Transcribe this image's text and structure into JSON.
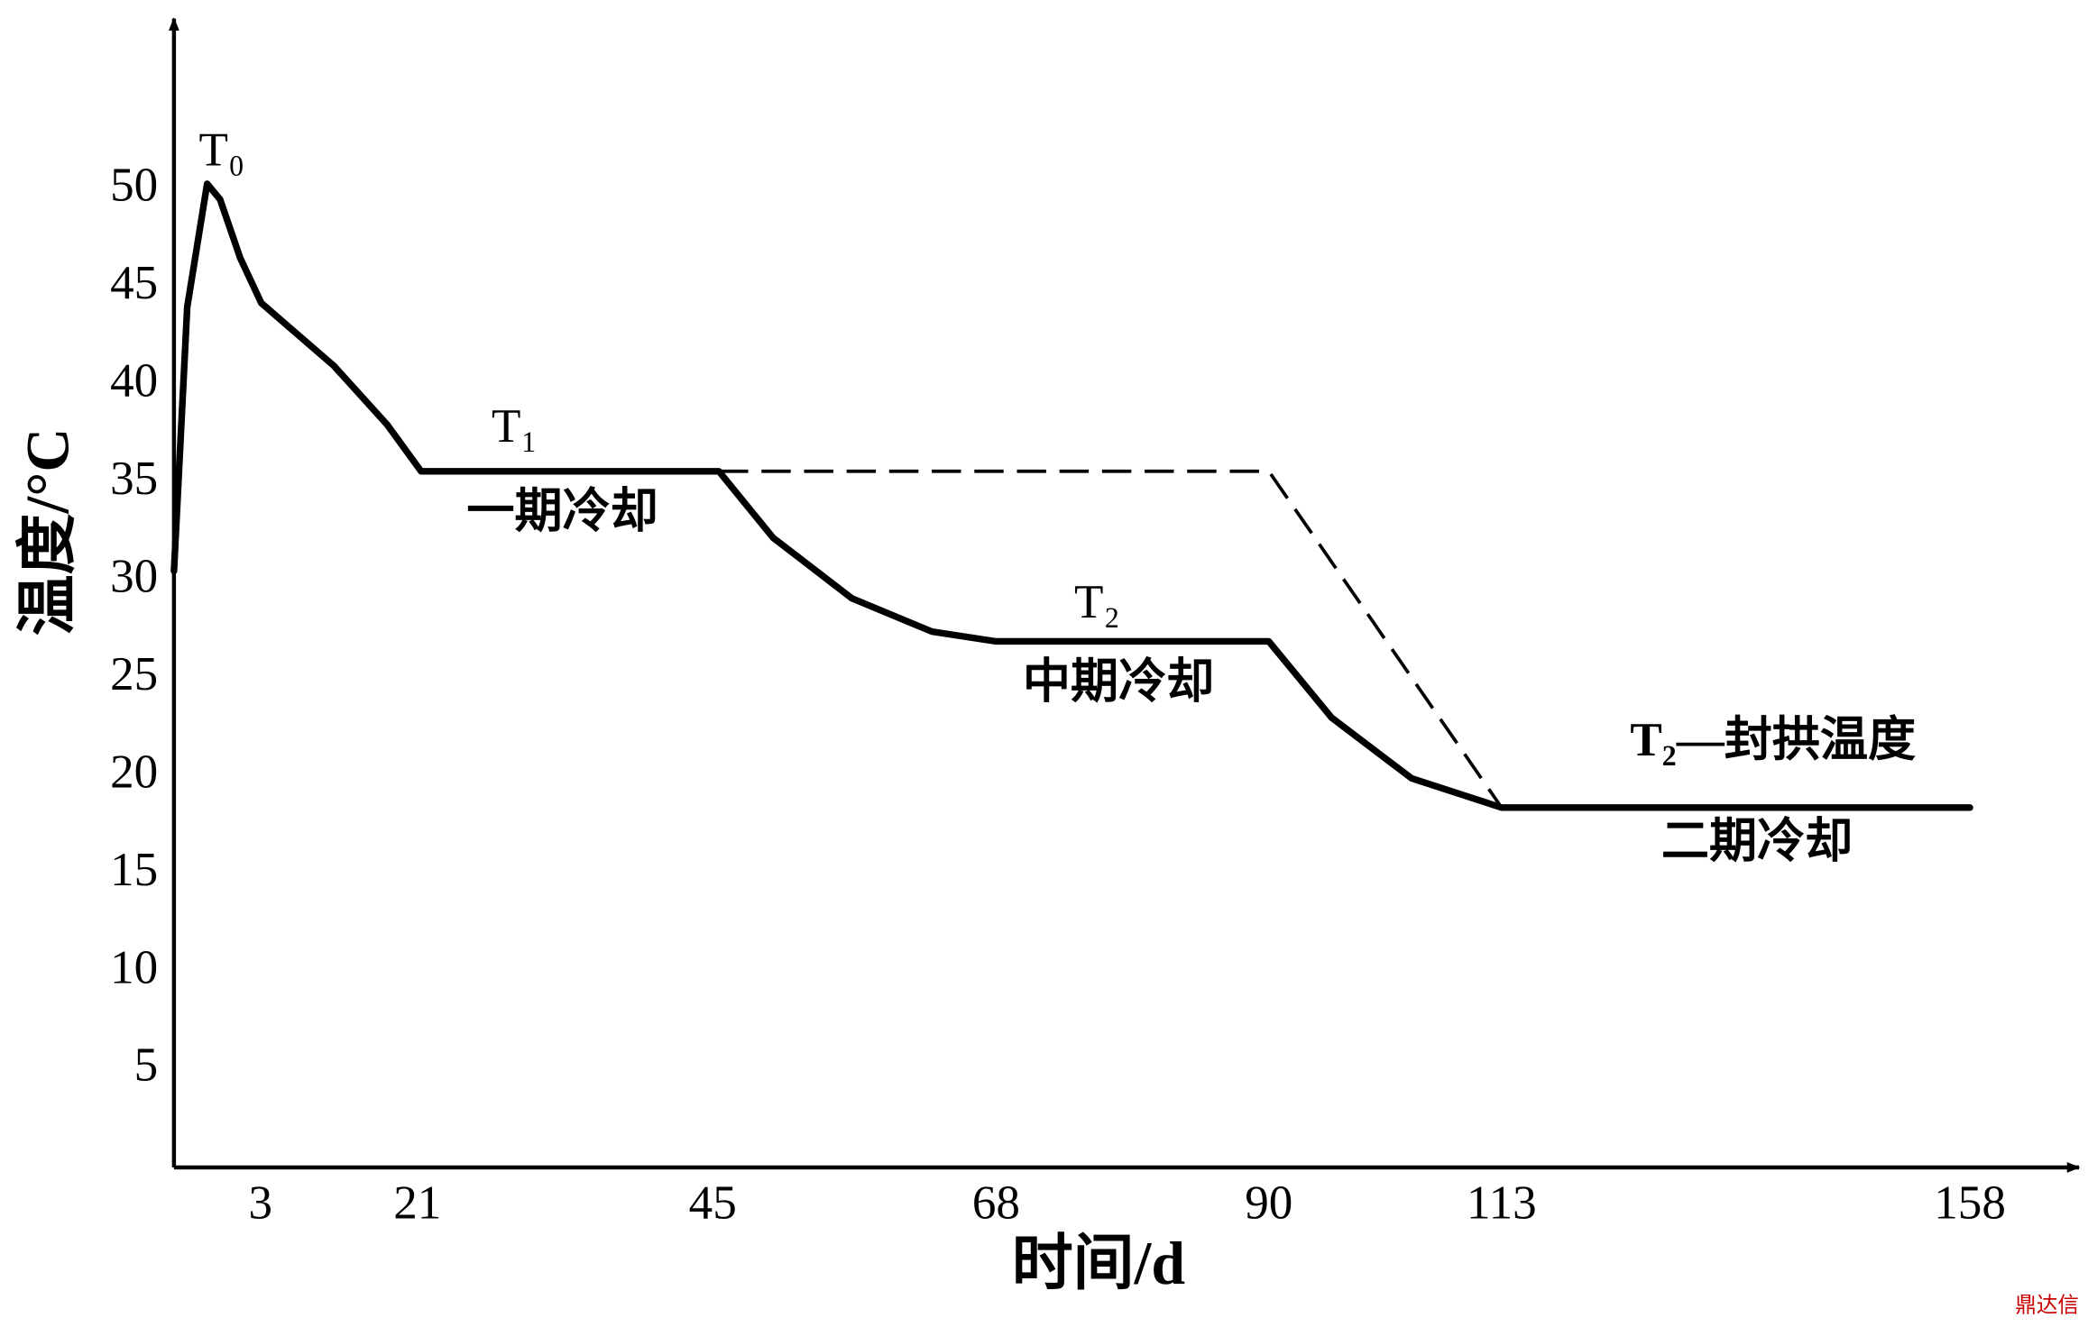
{
  "chart_data": {
    "type": "line",
    "xlabel": "时间/d",
    "ylabel": "温度/°C",
    "xlim": [
      0,
      168
    ],
    "ylim": [
      0,
      58
    ],
    "xticks": [
      3,
      21,
      45,
      68,
      90,
      113,
      158
    ],
    "yticks": [
      5,
      10,
      15,
      20,
      25,
      30,
      35,
      40,
      45,
      50
    ],
    "series": [
      {
        "color": "#000000",
        "style": "solid",
        "x": [
          0,
          0.46,
          1.15,
          1.6,
          2.3,
          3.1,
          11.4,
          17.5,
          21.3,
          45.5,
          49.9,
          56.3,
          62.8,
          68,
          90,
          96.2,
          104.1,
          113,
          158
        ],
        "values": [
          30.5,
          44,
          50.3,
          49.5,
          46.5,
          44.2,
          41,
          38,
          35.6,
          35.6,
          32.2,
          29.1,
          27.4,
          26.9,
          26.9,
          23,
          19.9,
          18.4,
          18.4
        ]
      },
      {
        "color": "#000000",
        "style": "dashed",
        "x": [
          45.5,
          90,
          113
        ],
        "values": [
          35.6,
          35.6,
          18.4
        ]
      }
    ],
    "annotations": [
      "T₀",
      "T₁",
      "一期冷却",
      "T₂",
      "中期冷却",
      "T₂—封拱温度",
      "二期冷却"
    ],
    "watermark": "鼎达信"
  }
}
